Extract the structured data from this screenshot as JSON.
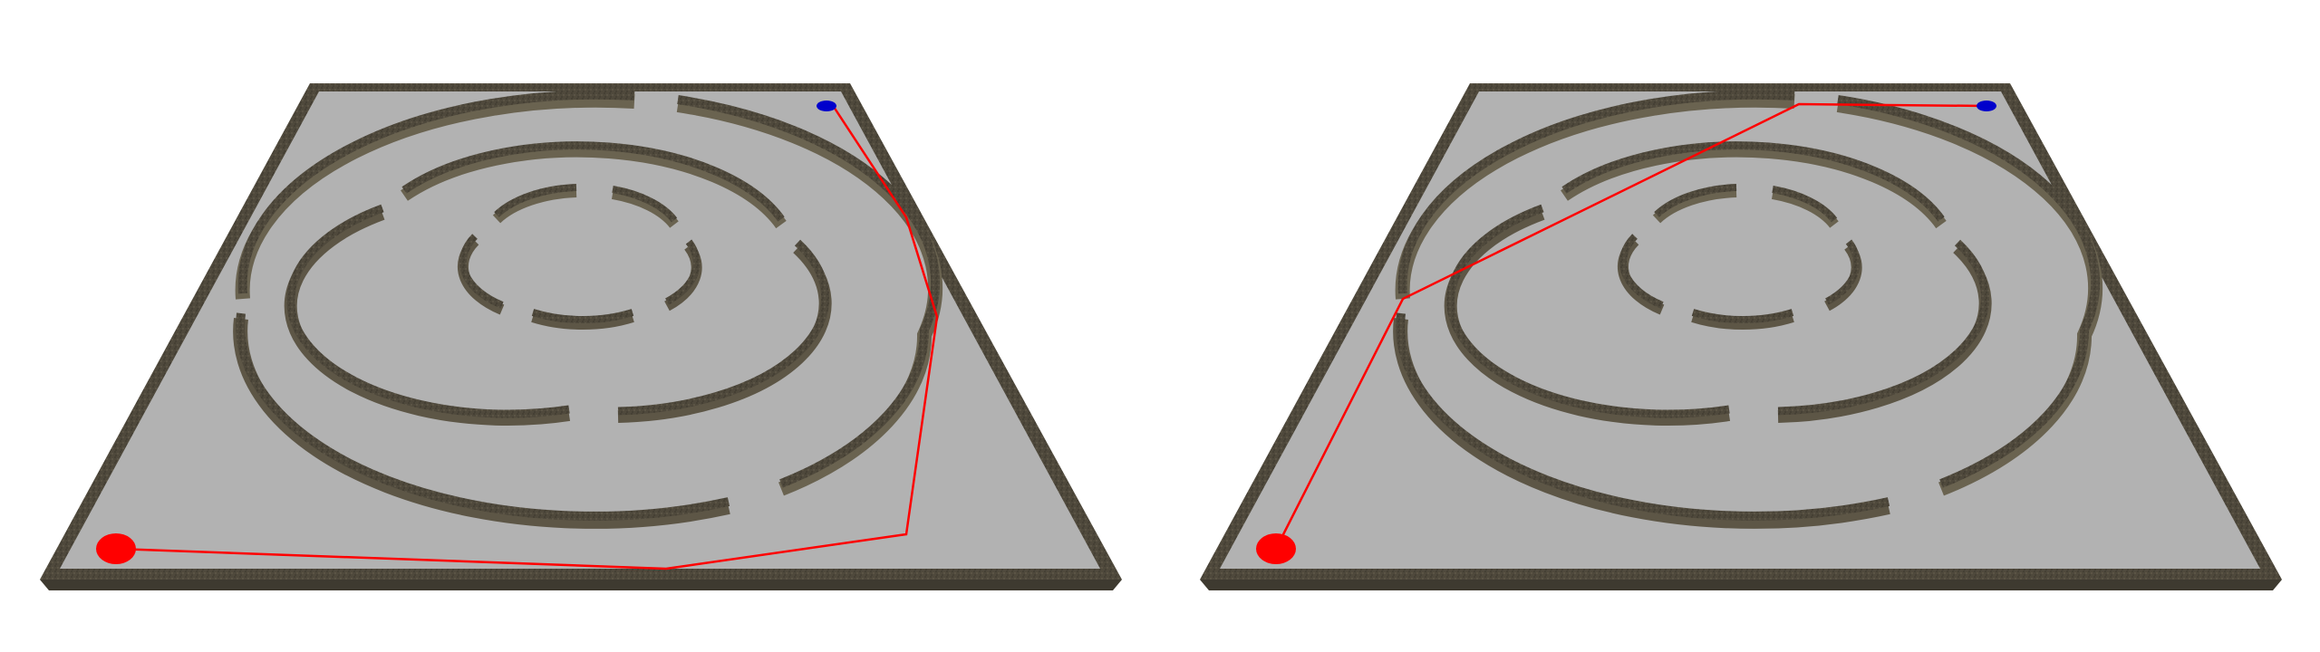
{
  "scene": {
    "panels": [
      {
        "name": "panel-left",
        "path": [
          [
            920,
            95
          ],
          [
            1000,
            170
          ],
          [
            1030,
            350
          ],
          [
            1000,
            590
          ],
          [
            735,
            628
          ],
          [
            118,
            605
          ]
        ]
      },
      {
        "name": "panel-right",
        "path": [
          [
            2195,
            117
          ],
          [
            1985,
            115
          ],
          [
            1540,
            115
          ],
          [
            1390,
            228
          ],
          [
            1390,
            305
          ],
          [
            1388,
            583
          ]
        ]
      }
    ]
  },
  "colors": {
    "background": "#ffffff",
    "floor": "#b2b2b2",
    "wall_top": "#4a4438",
    "wall_side": "#6a6350",
    "wall_inner": "#5d5646",
    "border_edge": "#3e3a30",
    "start": "#ff0000",
    "goal": "#0000cc",
    "path": "#ff0000"
  }
}
